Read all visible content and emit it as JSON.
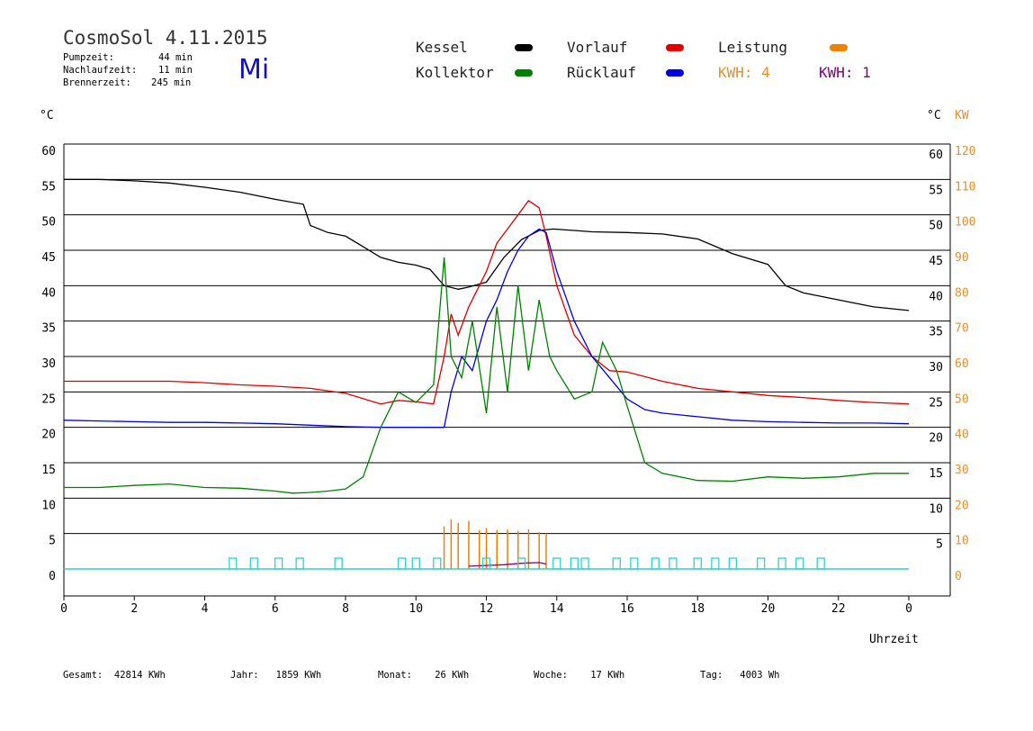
{
  "header": {
    "title": "CosmoSol 4.11.2015",
    "day": "Mi",
    "pump_label": "Pumpzeit:",
    "pump_value": "44 min",
    "nachlauf_label": "Nachlaufzeit:",
    "nachlauf_value": "11 min",
    "brenner_label": "Brennerzeit:",
    "brenner_value": "245 min"
  },
  "legend": {
    "kessel": "Kessel",
    "kollektor": "Kollektor",
    "vorlauf": "Vorlauf",
    "ruecklauf": "Rücklauf",
    "leistung": "Leistung",
    "kwh1": "KWH: 4",
    "kwh2": "KWH: 1"
  },
  "colors": {
    "kessel": "#000000",
    "kollektor": "#008000",
    "vorlauf": "#e00000",
    "ruecklauf": "#0000e0",
    "leistung": "#f08000",
    "kwh2": "#800080",
    "pump": "#30d0d0",
    "kw_axis": "#e09030"
  },
  "units": {
    "left": "°C",
    "right_c": "°C",
    "right_kw": "KW"
  },
  "footer": {
    "gesamt": "Gesamt:  42814 KWh",
    "jahr": "Jahr:   1859 KWh",
    "monat": "Monat:    26 KWh",
    "woche": "Woche:    17 KWh",
    "tag": "Tag:   4003 Wh"
  },
  "chart_data": {
    "type": "line",
    "xlabel": "Uhrzeit",
    "xlim": [
      0,
      24
    ],
    "ylim_left": [
      0,
      60
    ],
    "ylim_right_kw": [
      0,
      120
    ],
    "x_ticks": [
      "0",
      "2",
      "4",
      "6",
      "8",
      "10",
      "12",
      "14",
      "16",
      "18",
      "20",
      "22",
      "0"
    ],
    "y_ticks_left": [
      "0",
      "5",
      "10",
      "15",
      "20",
      "25",
      "30",
      "35",
      "40",
      "45",
      "50",
      "55",
      "60"
    ],
    "y_ticks_right_c": [
      "5",
      "10",
      "15",
      "20",
      "25",
      "30",
      "35",
      "40",
      "45",
      "50",
      "55",
      "60"
    ],
    "y_ticks_right_kw": [
      "0",
      "10",
      "20",
      "30",
      "40",
      "50",
      "60",
      "70",
      "80",
      "90",
      "100",
      "110",
      "120"
    ],
    "grid": "horizontal",
    "series": [
      {
        "name": "Kessel",
        "x": [
          0,
          1,
          2,
          3,
          4,
          5,
          6,
          6.8,
          7,
          7.5,
          8,
          8.5,
          9,
          9.5,
          10,
          10.4,
          10.8,
          11.2,
          11.5,
          12,
          12.5,
          13,
          13.5,
          13.9,
          14.5,
          15,
          16,
          17,
          18,
          19,
          20,
          20.5,
          21,
          22,
          23,
          24
        ],
        "y": [
          55,
          55,
          54.8,
          54.5,
          53.9,
          53.2,
          52.2,
          51.5,
          48.5,
          47.5,
          47,
          45.5,
          44,
          43.3,
          42.9,
          42.3,
          40,
          39.5,
          39.8,
          40.5,
          44,
          46.5,
          47.8,
          48,
          47.8,
          47.6,
          47.5,
          47.3,
          46.6,
          44.5,
          43,
          40,
          39,
          38,
          37,
          36.5
        ]
      },
      {
        "name": "Vorlauf",
        "x": [
          0,
          1,
          2,
          3,
          4,
          5,
          6,
          7,
          8,
          9,
          9.5,
          10,
          10.5,
          10.8,
          11,
          11.2,
          11.5,
          11.8,
          12,
          12.3,
          12.6,
          12.9,
          13.2,
          13.5,
          13.7,
          14,
          14.5,
          15,
          15.5,
          16,
          17,
          18,
          19,
          20,
          21,
          22,
          23,
          24
        ],
        "y": [
          26.5,
          26.5,
          26.5,
          26.5,
          26.3,
          26,
          25.8,
          25.5,
          24.8,
          23.3,
          23.8,
          23.6,
          23.3,
          30,
          36,
          33,
          37,
          40,
          42,
          46,
          48,
          50,
          52,
          51,
          47,
          40,
          33,
          30,
          28,
          27.8,
          26.5,
          25.5,
          25,
          24.5,
          24.2,
          23.8,
          23.5,
          23.3
        ]
      },
      {
        "name": "Rücklauf",
        "x": [
          0,
          1,
          2,
          3,
          4,
          5,
          6,
          7,
          8,
          9,
          10,
          10.8,
          11,
          11.3,
          11.6,
          12,
          12.3,
          12.6,
          12.9,
          13.2,
          13.5,
          13.7,
          14,
          14.5,
          15,
          15.5,
          16,
          16.5,
          17,
          18,
          19,
          20,
          21,
          22,
          23,
          24
        ],
        "y": [
          21,
          20.9,
          20.8,
          20.7,
          20.7,
          20.6,
          20.5,
          20.3,
          20.1,
          20,
          20,
          20,
          25,
          30,
          28,
          35,
          38,
          42,
          45,
          47,
          48,
          47.5,
          42,
          35,
          30,
          27,
          24,
          22.5,
          22,
          21.5,
          21,
          20.8,
          20.7,
          20.6,
          20.6,
          20.5
        ]
      },
      {
        "name": "Kollektor",
        "x": [
          0,
          1,
          2,
          3,
          4,
          5,
          6,
          6.5,
          7,
          7.5,
          8,
          8.5,
          9,
          9.5,
          10,
          10.5,
          10.8,
          11,
          11.3,
          11.6,
          12,
          12.3,
          12.6,
          12.9,
          13.2,
          13.5,
          13.8,
          14,
          14.5,
          15,
          15.3,
          15.7,
          16,
          16.5,
          17,
          18,
          19,
          20,
          21,
          22,
          23,
          24
        ],
        "y": [
          11.5,
          11.5,
          11.8,
          12,
          11.5,
          11.4,
          11,
          10.7,
          10.8,
          11,
          11.3,
          13,
          20,
          25,
          23.5,
          26,
          44,
          30,
          27,
          35,
          22,
          37,
          25,
          40,
          28,
          38,
          30,
          28,
          24,
          25,
          32,
          28,
          23,
          15,
          13.5,
          12.5,
          12.4,
          13,
          12.8,
          13,
          13.5,
          13.5
        ]
      },
      {
        "name": "Leistung",
        "x": [
          10.8,
          11,
          11.2,
          11.5,
          11.8,
          12,
          12.3,
          12.6,
          12.9,
          13.2,
          13.5,
          13.7
        ],
        "y": [
          6,
          7,
          6.5,
          6.8,
          5.5,
          5.8,
          5.5,
          5.6,
          5.4,
          5.6,
          5.2,
          5
        ]
      },
      {
        "name": "KWH: 1",
        "x": [
          11.5,
          12,
          12.5,
          13,
          13.5,
          13.7
        ],
        "y": [
          0.4,
          0.5,
          0.6,
          0.8,
          0.9,
          0.7
        ]
      },
      {
        "name": "Pumpzeit",
        "x": [
          4.8,
          5.4,
          6.1,
          6.7,
          7.8,
          9.6,
          10,
          10.6,
          12,
          13,
          14,
          14.5,
          14.8,
          15.7,
          16.2,
          16.8,
          17.3,
          18,
          18.5,
          19,
          19.8,
          20.4,
          20.9,
          21.5
        ],
        "y": [
          0.5,
          0.5,
          0.5,
          0.5,
          0.5,
          0.5,
          0.5,
          0.5,
          0.5,
          0.5,
          0.5,
          0.5,
          0.5,
          0.5,
          0.5,
          0.5,
          0.5,
          0.5,
          0.5,
          0.5,
          0.5,
          0.5,
          0.5,
          0.5
        ]
      }
    ]
  }
}
